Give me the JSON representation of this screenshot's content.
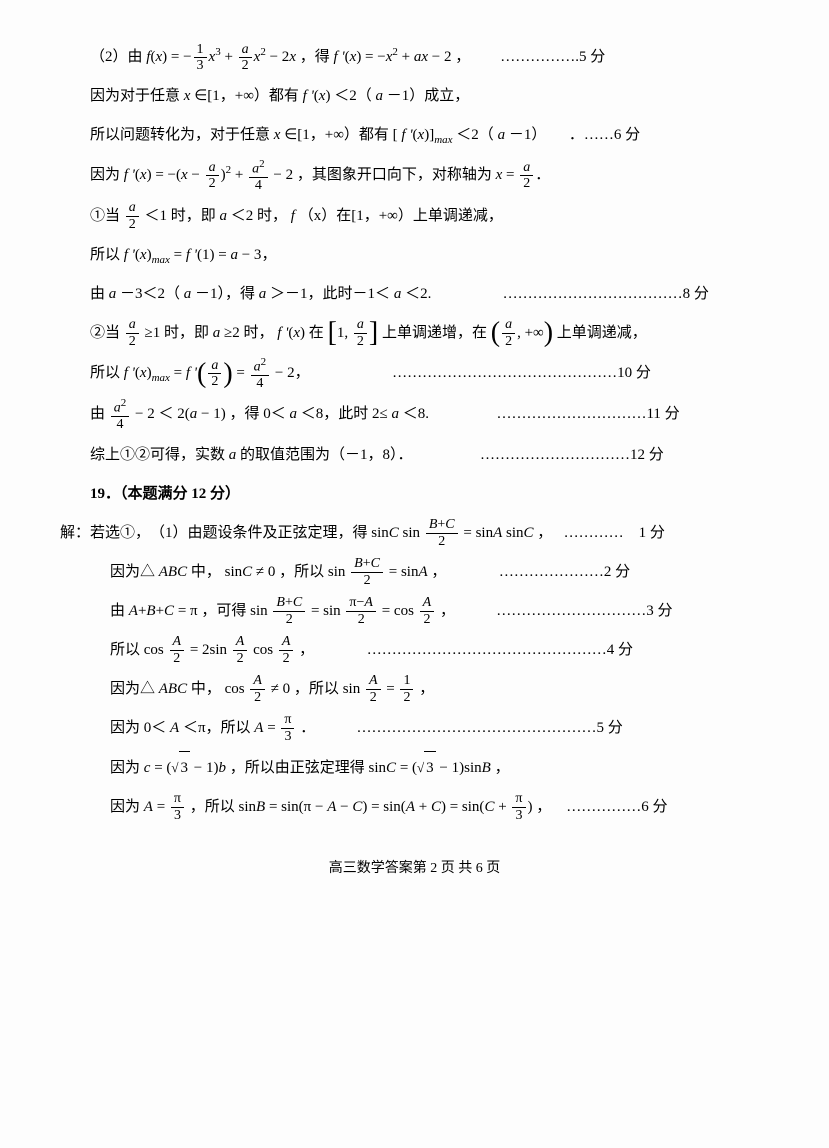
{
  "lines": {
    "l1a": "（2）由 ",
    "l1b": "，得 ",
    "l1c": "，",
    "l1score": "…………….5 分",
    "l2a": "因为对于任意 ",
    "l2b": "∈[1，+∞）都有 ",
    "l2c": "＜2（",
    "l2d": "－1）成立，",
    "l3a": "所以问题转化为，对于任意 ",
    "l3b": "∈[1，+∞）都有 [",
    "l3c": "＜2（",
    "l3d": "－1）",
    "l3score": "．……6 分",
    "l4a": "因为 ",
    "l4b": "，其图象开口向下，对称轴为 ",
    "l5a": "①当 ",
    "l5b": "＜1 时，即 ",
    "l5c": "＜2 时，",
    "l5d": "（x）在[1，+∞）上单调递减，",
    "l6a": "所以 ",
    "l7a": "由 ",
    "l7b": "－3＜2（",
    "l7c": "－1），得 ",
    "l7d": "＞－1，此时－1＜",
    "l7e": "＜2.",
    "l7score": "………………………………8 分",
    "l8a": "②当 ",
    "l8b": "≥1 时，即 ",
    "l8c": "≥2 时，",
    "l8d": " 在",
    "l8e": "上单调递增，在",
    "l8f": "上单调递减，",
    "l9a": "所以 ",
    "l9score": "………………………………………10 分",
    "l10a": "由 ",
    "l10b": "，得 0＜",
    "l10c": "＜8，此时 2≤",
    "l10d": "＜8.",
    "l10score": "…………………………11 分",
    "l11a": "综上①②可得，实数 ",
    "l11b": " 的取值范围为（－1，8）．",
    "l11score": "…………………………12 分",
    "l12": "19．（本题满分 12 分）",
    "l13a": "解：若选①，　（1）由题设条件及正弦定理，得 ",
    "l13b": "，",
    "l13score": "…………　1 分",
    "l14a": "因为△",
    "l14b": " 中，",
    "l14c": "，所以 ",
    "l14d": "，",
    "l14score": "…………………2 分",
    "l15a": "由 ",
    "l15b": "，可得 ",
    "l15c": "，",
    "l15score": "…………………………3 分",
    "l16a": "所以 ",
    "l16b": "，",
    "l16score": "…………………………………………4 分",
    "l17a": "因为△",
    "l17b": " 中，",
    "l17c": "，所以 ",
    "l17d": "，",
    "l18a": "因为 0＜",
    "l18b": "＜π，所以 ",
    "l18c": "．",
    "l18score": "…………………………………………5 分",
    "l19a": "因为 ",
    "l19b": "，所以由正弦定理得 ",
    "l19c": "，",
    "l20a": "因为 ",
    "l20b": "，所以 ",
    "l20c": "，",
    "l20score": "……………6 分"
  },
  "footer": "高三数学答案第 2 页 共 6 页"
}
